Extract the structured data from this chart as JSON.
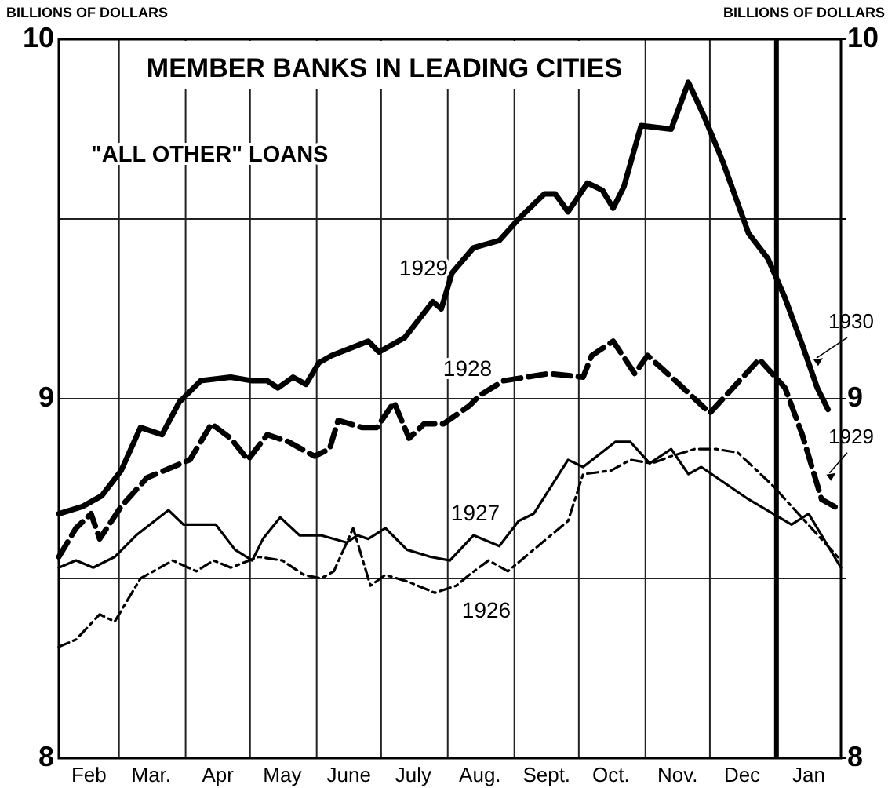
{
  "chart_data": {
    "type": "line",
    "title": "MEMBER BANKS IN LEADING CITIES",
    "subtitle": "\"ALL OTHER\" LOANS",
    "ylabel": "BILLIONS OF DOLLARS",
    "y2label": "BILLIONS OF DOLLARS",
    "xlim": [
      "1929-02-01",
      "1930-01-31"
    ],
    "xticks": [
      {
        "value": "1929-02-15",
        "label": "Feb"
      },
      {
        "value": "1929-03-01",
        "label": null
      },
      {
        "value": "1929-03-16",
        "label": "Mar."
      },
      {
        "value": "1929-04-01",
        "label": null
      },
      {
        "value": "1929-04-16",
        "label": "Apr"
      },
      {
        "value": "1929-05-01",
        "label": null
      },
      {
        "value": "1929-05-16",
        "label": "May"
      },
      {
        "value": "1929-06-01",
        "label": null
      },
      {
        "value": "1929-06-16",
        "label": "June"
      },
      {
        "value": "1929-07-01",
        "label": null
      },
      {
        "value": "1929-07-16",
        "label": "July"
      },
      {
        "value": "1929-08-01",
        "label": null
      },
      {
        "value": "1929-08-16",
        "label": "Aug."
      },
      {
        "value": "1929-09-01",
        "label": null
      },
      {
        "value": "1929-09-16",
        "label": "Sept."
      },
      {
        "value": "1929-10-01",
        "label": null
      },
      {
        "value": "1929-10-16",
        "label": "Oct."
      },
      {
        "value": "1929-11-01",
        "label": null
      },
      {
        "value": "1929-11-16",
        "label": "Nov."
      },
      {
        "value": "1929-12-01",
        "label": null
      },
      {
        "value": "1929-12-16",
        "label": "Dec"
      },
      {
        "value": "1930-01-01",
        "label": null
      },
      {
        "value": "1930-01-16",
        "label": "Jan"
      }
    ],
    "ylim": [
      8,
      10
    ],
    "yticks": [
      {
        "value": 8,
        "label": "8"
      },
      {
        "value": 8.5,
        "label": null
      },
      {
        "value": 9,
        "label": "9"
      },
      {
        "value": 9.5,
        "label": null
      },
      {
        "value": 10,
        "label": "10"
      }
    ],
    "y2lim": [
      8,
      10
    ],
    "y2ticks": [
      {
        "value": 8,
        "label": "8"
      },
      {
        "value": 8.5,
        "label": null
      },
      {
        "value": 9,
        "label": "9"
      },
      {
        "value": 9.5,
        "label": null
      },
      {
        "value": 10,
        "label": "10"
      }
    ],
    "grid": true,
    "marker": "none",
    "ref_lines": [
      {
        "axis": "x",
        "value": "1930-01-01",
        "label": null,
        "color": "#000000"
      }
    ],
    "series": [
      {
        "color": "#000000",
        "line_style": "solid",
        "x": [
          "1929-02-01",
          "1929-02-12",
          "1929-02-21",
          "1929-03-02",
          "1929-03-11",
          "1929-03-21",
          "1929-03-29",
          "1929-04-08",
          "1929-04-22",
          "1929-05-02",
          "1929-05-09",
          "1929-05-14",
          "1929-05-21",
          "1929-05-27",
          "1929-06-02",
          "1929-06-08",
          "1929-06-25",
          "1929-06-30",
          "1929-07-12",
          "1929-07-25",
          "1929-07-29",
          "1929-08-03",
          "1929-08-13",
          "1929-08-25",
          "1929-09-03",
          "1929-09-15",
          "1929-09-20",
          "1929-09-26",
          "1929-10-05",
          "1929-10-12",
          "1929-10-17",
          "1929-10-22",
          "1929-10-30",
          "1929-11-13",
          "1929-11-21",
          "1929-11-28",
          "1929-12-07",
          "1929-12-16",
          "1929-12-19",
          "1929-12-28",
          "1930-01-05",
          "1930-01-13",
          "1930-01-20",
          "1930-01-25"
        ],
        "values": [
          8.68,
          8.7,
          8.73,
          8.8,
          8.92,
          8.9,
          8.99,
          9.05,
          9.06,
          9.05,
          9.05,
          9.03,
          9.06,
          9.04,
          9.1,
          9.12,
          9.16,
          9.13,
          9.17,
          9.27,
          9.25,
          9.35,
          9.42,
          9.44,
          9.5,
          9.57,
          9.57,
          9.52,
          9.6,
          9.58,
          9.53,
          9.59,
          9.76,
          9.75,
          9.88,
          9.79,
          9.66,
          9.51,
          9.46,
          9.39,
          9.28,
          9.15,
          9.03,
          8.97
        ]
      },
      {
        "color": "#000000",
        "line_style": "dashed",
        "x": [
          "1929-02-01",
          "1929-02-09",
          "1929-02-16",
          "1929-02-20",
          "1929-03-02",
          "1929-03-14",
          "1929-03-26",
          "1929-04-03",
          "1929-04-13",
          "1929-04-22",
          "1929-04-30",
          "1929-05-09",
          "1929-05-19",
          "1929-05-31",
          "1929-06-07",
          "1929-06-11",
          "1929-06-22",
          "1929-06-29",
          "1929-07-07",
          "1929-07-14",
          "1929-07-21",
          "1929-07-30",
          "1929-08-11",
          "1929-08-16",
          "1929-08-27",
          "1929-09-17",
          "1929-10-03",
          "1929-10-07",
          "1929-10-17",
          "1929-10-27",
          "1929-11-02",
          "1929-11-15",
          "1929-12-01",
          "1929-12-24",
          "1930-01-05",
          "1930-01-13",
          "1930-01-18",
          "1930-01-22",
          "1930-01-31"
        ],
        "values": [
          8.56,
          8.64,
          8.68,
          8.61,
          8.7,
          8.78,
          8.81,
          8.83,
          8.93,
          8.89,
          8.83,
          8.9,
          8.88,
          8.84,
          8.86,
          8.94,
          8.92,
          8.92,
          8.99,
          8.89,
          8.93,
          8.93,
          8.98,
          9.01,
          9.05,
          9.07,
          9.06,
          9.12,
          9.16,
          9.07,
          9.12,
          9.05,
          8.96,
          9.11,
          9.03,
          8.9,
          8.8,
          8.72,
          8.69
        ]
      },
      {
        "color": "#000000",
        "line_style": "solid",
        "x": [
          "1929-02-01",
          "1929-02-09",
          "1929-02-17",
          "1929-02-27",
          "1929-03-09",
          "1929-03-24",
          "1929-03-31",
          "1929-04-15",
          "1929-04-24",
          "1929-05-02",
          "1929-05-07",
          "1929-05-15",
          "1929-05-24",
          "1929-06-03",
          "1929-06-15",
          "1929-06-20",
          "1929-06-25",
          "1929-07-03",
          "1929-07-13",
          "1929-07-24",
          "1929-08-02",
          "1929-08-13",
          "1929-08-25",
          "1929-09-03",
          "1929-09-10",
          "1929-09-26",
          "1929-10-03",
          "1929-10-18",
          "1929-10-25",
          "1929-11-03",
          "1929-11-13",
          "1929-11-21",
          "1929-11-27",
          "1929-12-19",
          "1930-01-08",
          "1930-01-16",
          "1930-01-31"
        ],
        "values": [
          8.53,
          8.55,
          8.53,
          8.56,
          8.62,
          8.69,
          8.65,
          8.65,
          8.58,
          8.55,
          8.61,
          8.67,
          8.62,
          8.62,
          8.6,
          8.62,
          8.61,
          8.64,
          8.58,
          8.56,
          8.55,
          8.62,
          8.59,
          8.66,
          8.68,
          8.83,
          8.81,
          8.88,
          8.88,
          8.82,
          8.86,
          8.79,
          8.81,
          8.72,
          8.65,
          8.68,
          8.53
        ]
      },
      {
        "color": "#000000",
        "line_style": "dotted",
        "x": [
          "1929-02-01",
          "1929-02-09",
          "1929-02-20",
          "1929-02-27",
          "1929-03-11",
          "1929-03-26",
          "1929-04-06",
          "1929-04-14",
          "1929-04-22",
          "1929-05-05",
          "1929-05-16",
          "1929-05-26",
          "1929-06-03",
          "1929-06-09",
          "1929-06-18",
          "1929-06-26",
          "1929-07-03",
          "1929-07-14",
          "1929-07-26",
          "1929-08-05",
          "1929-08-11",
          "1929-08-20",
          "1929-08-29",
          "1929-09-08",
          "1929-09-26",
          "1929-10-03",
          "1929-10-16",
          "1929-10-25",
          "1929-11-04",
          "1929-11-13",
          "1929-11-24",
          "1929-12-04",
          "1929-12-14",
          "1929-12-30",
          "1930-01-31"
        ],
        "values": [
          8.31,
          8.33,
          8.4,
          8.38,
          8.5,
          8.55,
          8.52,
          8.55,
          8.53,
          8.56,
          8.55,
          8.51,
          8.5,
          8.52,
          8.64,
          8.48,
          8.51,
          8.49,
          8.46,
          8.48,
          8.51,
          8.55,
          8.52,
          8.57,
          8.66,
          8.79,
          8.8,
          8.83,
          8.82,
          8.84,
          8.86,
          8.86,
          8.85,
          8.76,
          8.55
        ]
      }
    ],
    "annotations": [
      "1929",
      "1928",
      "1927",
      "1926",
      {
        "text": "1930",
        "x": "1930-01-16",
        "y": 9.1
      },
      {
        "text": "1929",
        "x": "1930-01-22",
        "y": 8.78
      }
    ]
  }
}
